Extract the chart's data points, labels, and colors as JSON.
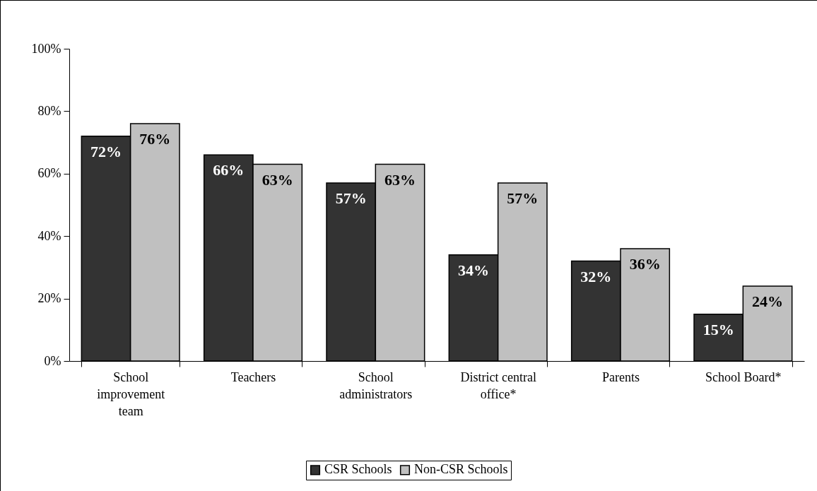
{
  "chart_data": {
    "type": "bar",
    "categories": [
      "School improvement team",
      "Teachers",
      "School administrators",
      "District central office*",
      "Parents",
      "School Board*"
    ],
    "series": [
      {
        "name": "CSR Schools",
        "color": "#333333",
        "values": [
          72,
          66,
          57,
          34,
          32,
          15
        ],
        "value_labels": [
          "72%",
          "66%",
          "57%",
          "34%",
          "32%",
          "15%"
        ]
      },
      {
        "name": "Non-CSR Schools",
        "color": "#c0c0c0",
        "values": [
          76,
          63,
          63,
          57,
          36,
          24
        ],
        "value_labels": [
          "76%",
          "63%",
          "63%",
          "57%",
          "36%",
          "24%"
        ]
      }
    ],
    "ylim": [
      0,
      100
    ],
    "yticks": [
      {
        "value": 0,
        "label": "0%"
      },
      {
        "value": 20,
        "label": "20%"
      },
      {
        "value": 40,
        "label": "40%"
      },
      {
        "value": 60,
        "label": "60%"
      },
      {
        "value": 80,
        "label": "80%"
      },
      {
        "value": 100,
        "label": "100%"
      }
    ],
    "grid": false,
    "legend": "bottom"
  }
}
